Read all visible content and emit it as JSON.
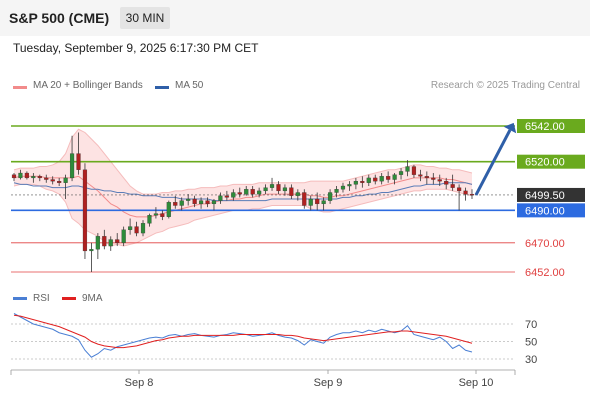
{
  "header": {
    "title": "S&P 500 (CME)",
    "timeframe": "30 MIN"
  },
  "timestamp": "Tuesday, September 9, 2025 6:17:30 PM CET",
  "legend": {
    "bollinger": {
      "label": "MA 20 + Bollinger Bands",
      "color": "#f28b8b"
    },
    "ma50": {
      "label": "MA 50",
      "color": "#2f5fa8"
    }
  },
  "credit": "Research © 2025 Trading Central",
  "rsi_legend": {
    "rsi": {
      "label": "RSI",
      "color": "#4a7fd4"
    },
    "ma9": {
      "label": "9MA",
      "color": "#e02020"
    }
  },
  "chart_data": {
    "type": "candlestick",
    "price_axis": {
      "min": 6445,
      "max": 6550
    },
    "levels": [
      {
        "value": 6542.0,
        "label": "6542.00",
        "kind": "resistance",
        "color": "#6aaa1e"
      },
      {
        "value": 6520.0,
        "label": "6520.00",
        "kind": "resistance",
        "color": "#6aaa1e"
      },
      {
        "value": 6499.5,
        "label": "6499.50",
        "kind": "last",
        "color": "#333333"
      },
      {
        "value": 6490.0,
        "label": "6490.00",
        "kind": "pivot",
        "color": "#2d6be0"
      },
      {
        "value": 6470.0,
        "label": "6470.00",
        "kind": "support",
        "color": "#e04040"
      },
      {
        "value": 6452.0,
        "label": "6452.00",
        "kind": "support",
        "color": "#e04040"
      }
    ],
    "x_ticks": [
      "Sep 8",
      "Sep 9",
      "Sep 10"
    ],
    "rsi": {
      "ticks": [
        70,
        50,
        30
      ],
      "min": 15,
      "max": 90
    },
    "candles": [
      [
        6512,
        6513,
        6508,
        6510
      ],
      [
        6510,
        6515,
        6509,
        6513
      ],
      [
        6513,
        6514,
        6509,
        6510
      ],
      [
        6510,
        6513,
        6507,
        6511
      ],
      [
        6511,
        6512,
        6508,
        6510
      ],
      [
        6510,
        6512,
        6507,
        6509
      ],
      [
        6509,
        6511,
        6506,
        6508
      ],
      [
        6508,
        6510,
        6505,
        6507
      ],
      [
        6507,
        6512,
        6497,
        6510
      ],
      [
        6510,
        6536,
        6508,
        6525
      ],
      [
        6525,
        6538,
        6512,
        6515
      ],
      [
        6515,
        6519,
        6460,
        6465
      ],
      [
        6465,
        6470,
        6452,
        6466
      ],
      [
        6466,
        6476,
        6460,
        6474
      ],
      [
        6474,
        6478,
        6466,
        6468
      ],
      [
        6468,
        6474,
        6465,
        6472
      ],
      [
        6472,
        6476,
        6468,
        6470
      ],
      [
        6470,
        6480,
        6468,
        6478
      ],
      [
        6478,
        6485,
        6475,
        6480
      ],
      [
        6480,
        6483,
        6474,
        6476
      ],
      [
        6476,
        6484,
        6474,
        6482
      ],
      [
        6482,
        6488,
        6480,
        6487
      ],
      [
        6487,
        6492,
        6485,
        6488
      ],
      [
        6488,
        6490,
        6484,
        6486
      ],
      [
        6486,
        6496,
        6485,
        6495
      ],
      [
        6495,
        6499,
        6491,
        6493
      ],
      [
        6493,
        6498,
        6490,
        6496
      ],
      [
        6496,
        6500,
        6493,
        6497
      ],
      [
        6497,
        6499,
        6492,
        6494
      ],
      [
        6494,
        6498,
        6491,
        6496
      ],
      [
        6496,
        6498,
        6492,
        6494
      ],
      [
        6494,
        6497,
        6490,
        6496
      ],
      [
        6496,
        6501,
        6494,
        6499
      ],
      [
        6499,
        6502,
        6496,
        6498
      ],
      [
        6498,
        6503,
        6496,
        6501
      ],
      [
        6501,
        6504,
        6498,
        6500
      ],
      [
        6500,
        6505,
        6499,
        6503
      ],
      [
        6503,
        6505,
        6498,
        6500
      ],
      [
        6500,
        6504,
        6498,
        6502
      ],
      [
        6502,
        6506,
        6500,
        6504
      ],
      [
        6504,
        6510,
        6502,
        6506
      ],
      [
        6506,
        6508,
        6500,
        6502
      ],
      [
        6502,
        6506,
        6499,
        6504
      ],
      [
        6504,
        6506,
        6497,
        6499
      ],
      [
        6499,
        6503,
        6496,
        6501
      ],
      [
        6501,
        6503,
        6491,
        6493
      ],
      [
        6493,
        6499,
        6490,
        6497
      ],
      [
        6497,
        6501,
        6490,
        6494
      ],
      [
        6494,
        6498,
        6490,
        6496
      ],
      [
        6496,
        6503,
        6494,
        6501
      ],
      [
        6501,
        6505,
        6498,
        6503
      ],
      [
        6503,
        6507,
        6501,
        6505
      ],
      [
        6505,
        6508,
        6502,
        6506
      ],
      [
        6506,
        6510,
        6503,
        6508
      ],
      [
        6508,
        6511,
        6504,
        6507
      ],
      [
        6507,
        6512,
        6505,
        6510
      ],
      [
        6510,
        6512,
        6506,
        6508
      ],
      [
        6508,
        6513,
        6506,
        6511
      ],
      [
        6511,
        6514,
        6507,
        6509
      ],
      [
        6509,
        6513,
        6506,
        6512
      ],
      [
        6512,
        6516,
        6509,
        6514
      ],
      [
        6514,
        6521,
        6511,
        6517
      ],
      [
        6517,
        6518,
        6510,
        6512
      ],
      [
        6512,
        6515,
        6508,
        6511
      ],
      [
        6511,
        6514,
        6506,
        6510
      ],
      [
        6510,
        6513,
        6506,
        6509
      ],
      [
        6509,
        6512,
        6505,
        6508
      ],
      [
        6508,
        6510,
        6503,
        6506
      ],
      [
        6506,
        6512,
        6502,
        6504
      ],
      [
        6504,
        6506,
        6490,
        6502
      ],
      [
        6502,
        6504,
        6496,
        6500
      ],
      [
        6500,
        6503,
        6497,
        6499.5
      ]
    ],
    "ma50": [
      6507,
      6506,
      6506,
      6505,
      6505,
      6505,
      6504,
      6504,
      6504,
      6505,
      6505,
      6504,
      6503,
      6503,
      6502,
      6502,
      6501,
      6501,
      6500,
      6500,
      6499,
      6499,
      6499,
      6498,
      6498,
      6498,
      6497,
      6497,
      6497,
      6497,
      6497,
      6496,
      6496,
      6496,
      6496,
      6496,
      6496,
      6496,
      6496,
      6496,
      6497,
      6497,
      6497,
      6497,
      6497,
      6497,
      6497,
      6497,
      6497,
      6497,
      6497,
      6498,
      6498,
      6499,
      6499,
      6500,
      6500,
      6501,
      6501,
      6502,
      6503,
      6504,
      6505,
      6505,
      6506,
      6506,
      6506,
      6507,
      6507,
      6507,
      6507,
      6506
    ],
    "bb_mid": [
      6510,
      6511,
      6511,
      6511,
      6511,
      6510,
      6510,
      6510,
      6510,
      6510,
      6511,
      6508,
      6505,
      6502,
      6498,
      6494,
      6492,
      6489,
      6487,
      6486,
      6486,
      6486,
      6487,
      6488,
      6489,
      6490,
      6491,
      6492,
      6493,
      6494,
      6494,
      6495,
      6496,
      6496,
      6497,
      6497,
      6498,
      6498,
      6499,
      6500,
      6500,
      6500,
      6500,
      6500,
      6500,
      6500,
      6499,
      6499,
      6498,
      6498,
      6499,
      6499,
      6500,
      6501,
      6502,
      6503,
      6504,
      6505,
      6506,
      6507,
      6508,
      6509,
      6510,
      6510,
      6510,
      6510,
      6510,
      6509,
      6509,
      6508,
      6507,
      6506
    ],
    "bb_upper": [
      6515,
      6516,
      6516,
      6516,
      6517,
      6517,
      6518,
      6520,
      6525,
      6535,
      6540,
      6538,
      6534,
      6530,
      6525,
      6520,
      6515,
      6510,
      6505,
      6502,
      6500,
      6500,
      6500,
      6501,
      6501,
      6502,
      6502,
      6503,
      6503,
      6504,
      6504,
      6504,
      6505,
      6505,
      6506,
      6506,
      6506,
      6506,
      6507,
      6507,
      6507,
      6507,
      6507,
      6507,
      6507,
      6507,
      6508,
      6508,
      6508,
      6508,
      6508,
      6508,
      6509,
      6510,
      6511,
      6512,
      6513,
      6514,
      6515,
      6515,
      6516,
      6517,
      6518,
      6518,
      6517,
      6517,
      6516,
      6516,
      6515,
      6515,
      6514,
      6513
    ],
    "bb_lower": [
      6505,
      6506,
      6506,
      6506,
      6505,
      6503,
      6502,
      6500,
      6495,
      6485,
      6482,
      6478,
      6476,
      6474,
      6471,
      6468,
      6469,
      6468,
      6469,
      6470,
      6472,
      6474,
      6476,
      6477,
      6479,
      6480,
      6481,
      6482,
      6484,
      6485,
      6486,
      6487,
      6488,
      6489,
      6490,
      6490,
      6490,
      6491,
      6491,
      6492,
      6493,
      6493,
      6493,
      6493,
      6493,
      6493,
      6491,
      6490,
      6489,
      6489,
      6490,
      6491,
      6492,
      6493,
      6494,
      6495,
      6496,
      6497,
      6498,
      6499,
      6500,
      6501,
      6502,
      6502,
      6503,
      6503,
      6503,
      6503,
      6502,
      6501,
      6500,
      6499
    ],
    "rsi_values": [
      82,
      78,
      74,
      70,
      68,
      66,
      64,
      60,
      58,
      56,
      52,
      40,
      32,
      36,
      42,
      40,
      44,
      46,
      48,
      50,
      52,
      54,
      55,
      54,
      57,
      58,
      56,
      58,
      59,
      57,
      56,
      55,
      57,
      58,
      60,
      59,
      58,
      56,
      57,
      58,
      60,
      57,
      55,
      54,
      51,
      46,
      52,
      50,
      48,
      55,
      58,
      60,
      60,
      62,
      60,
      63,
      61,
      64,
      62,
      60,
      62,
      68,
      58,
      56,
      54,
      52,
      55,
      50,
      42,
      46,
      40,
      38
    ],
    "rsi_ma9": [
      80,
      79,
      77,
      75,
      73,
      71,
      69,
      67,
      64,
      61,
      58,
      55,
      50,
      47,
      45,
      44,
      43,
      43,
      44,
      45,
      47,
      49,
      51,
      52,
      54,
      55,
      56,
      56,
      57,
      57,
      57,
      57,
      57,
      57,
      57,
      58,
      58,
      58,
      58,
      58,
      58,
      58,
      57,
      57,
      56,
      54,
      53,
      52,
      51,
      52,
      53,
      54,
      55,
      56,
      57,
      58,
      59,
      60,
      61,
      61,
      62,
      62,
      61,
      60,
      59,
      58,
      57,
      56,
      54,
      52,
      50,
      48
    ]
  }
}
